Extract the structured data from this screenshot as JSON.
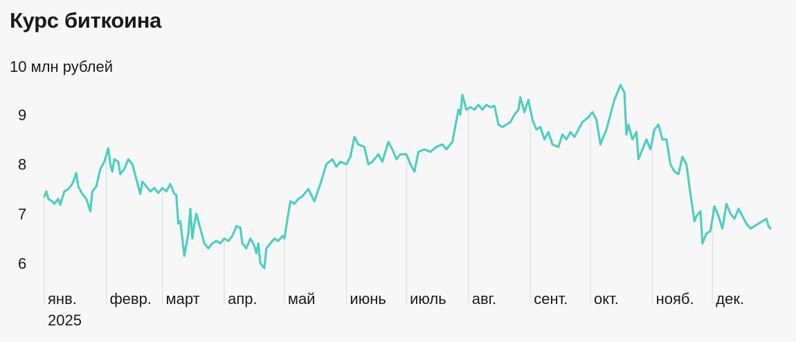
{
  "title": "Курс биткоина",
  "subtitle": "10 млн рублей",
  "colors": {
    "line": "#4fcfbf",
    "gridline": "#dadada",
    "background": "#f7f7f7"
  },
  "chart_data": {
    "type": "line",
    "title": "Курс биткоина",
    "ylabel": "10 млн рублей",
    "ylim": [
      5.8,
      9.7
    ],
    "grid": false,
    "y_ticks": [
      "6",
      "7",
      "8",
      "9"
    ],
    "x_ticks": [
      "янв.",
      "февр.",
      "март",
      "апр.",
      "май",
      "июнь",
      "июль",
      "авг.",
      "сент.",
      "окт.",
      "нояб.",
      "дек."
    ],
    "x_year_label": "2025",
    "series": [
      {
        "points": [
          [
            "2025-01-01",
            7.35
          ],
          [
            "2025-01-02",
            7.45
          ],
          [
            "2025-01-03",
            7.3
          ],
          [
            "2025-01-05",
            7.25
          ],
          [
            "2025-01-06",
            7.2
          ],
          [
            "2025-01-08",
            7.3
          ],
          [
            "2025-01-09",
            7.18
          ],
          [
            "2025-01-11",
            7.45
          ],
          [
            "2025-01-13",
            7.5
          ],
          [
            "2025-01-15",
            7.6
          ],
          [
            "2025-01-17",
            7.82
          ],
          [
            "2025-01-18",
            7.55
          ],
          [
            "2025-01-20",
            7.4
          ],
          [
            "2025-01-22",
            7.3
          ],
          [
            "2025-01-24",
            7.05
          ],
          [
            "2025-01-25",
            7.45
          ],
          [
            "2025-01-27",
            7.55
          ],
          [
            "2025-01-29",
            7.9
          ],
          [
            "2025-01-31",
            8.05
          ],
          [
            "2025-02-02",
            8.32
          ],
          [
            "2025-02-03",
            8.0
          ],
          [
            "2025-02-04",
            7.85
          ],
          [
            "2025-02-05",
            8.1
          ],
          [
            "2025-02-07",
            8.05
          ],
          [
            "2025-02-08",
            7.8
          ],
          [
            "2025-02-10",
            7.9
          ],
          [
            "2025-02-12",
            8.1
          ],
          [
            "2025-02-14",
            8.0
          ],
          [
            "2025-02-16",
            7.7
          ],
          [
            "2025-02-18",
            7.4
          ],
          [
            "2025-02-19",
            7.65
          ],
          [
            "2025-02-21",
            7.55
          ],
          [
            "2025-02-23",
            7.45
          ],
          [
            "2025-02-25",
            7.52
          ],
          [
            "2025-02-27",
            7.42
          ],
          [
            "2025-03-01",
            7.52
          ],
          [
            "2025-03-03",
            7.45
          ],
          [
            "2025-03-05",
            7.6
          ],
          [
            "2025-03-07",
            7.4
          ],
          [
            "2025-03-08",
            7.38
          ],
          [
            "2025-03-09",
            6.8
          ],
          [
            "2025-03-10",
            6.85
          ],
          [
            "2025-03-11",
            6.5
          ],
          [
            "2025-03-12",
            6.15
          ],
          [
            "2025-03-14",
            6.6
          ],
          [
            "2025-03-15",
            7.1
          ],
          [
            "2025-03-16",
            6.5
          ],
          [
            "2025-03-17",
            6.8
          ],
          [
            "2025-03-18",
            7.0
          ],
          [
            "2025-03-20",
            6.7
          ],
          [
            "2025-03-22",
            6.4
          ],
          [
            "2025-03-24",
            6.3
          ],
          [
            "2025-03-26",
            6.4
          ],
          [
            "2025-03-28",
            6.45
          ],
          [
            "2025-03-30",
            6.4
          ],
          [
            "2025-04-01",
            6.5
          ],
          [
            "2025-04-03",
            6.45
          ],
          [
            "2025-04-05",
            6.55
          ],
          [
            "2025-04-07",
            6.75
          ],
          [
            "2025-04-09",
            6.72
          ],
          [
            "2025-04-10",
            6.4
          ],
          [
            "2025-04-12",
            6.3
          ],
          [
            "2025-04-14",
            6.5
          ],
          [
            "2025-04-16",
            6.35
          ],
          [
            "2025-04-17",
            6.2
          ],
          [
            "2025-04-18",
            6.4
          ],
          [
            "2025-04-19",
            6.0
          ],
          [
            "2025-04-21",
            5.9
          ],
          [
            "2025-04-22",
            6.3
          ],
          [
            "2025-04-24",
            6.4
          ],
          [
            "2025-04-26",
            6.5
          ],
          [
            "2025-04-28",
            6.45
          ],
          [
            "2025-04-30",
            6.55
          ],
          [
            "2025-05-01",
            6.5
          ],
          [
            "2025-05-02",
            6.75
          ],
          [
            "2025-05-04",
            7.25
          ],
          [
            "2025-05-06",
            7.2
          ],
          [
            "2025-05-08",
            7.3
          ],
          [
            "2025-05-10",
            7.35
          ],
          [
            "2025-05-13",
            7.5
          ],
          [
            "2025-05-16",
            7.25
          ],
          [
            "2025-05-19",
            7.6
          ],
          [
            "2025-05-22",
            8.0
          ],
          [
            "2025-05-25",
            8.1
          ],
          [
            "2025-05-27",
            7.95
          ],
          [
            "2025-05-29",
            8.05
          ],
          [
            "2025-06-01",
            8.0
          ],
          [
            "2025-06-03",
            8.15
          ],
          [
            "2025-06-05",
            8.55
          ],
          [
            "2025-06-07",
            8.4
          ],
          [
            "2025-06-10",
            8.35
          ],
          [
            "2025-06-12",
            8.0
          ],
          [
            "2025-06-14",
            8.05
          ],
          [
            "2025-06-17",
            8.2
          ],
          [
            "2025-06-19",
            8.05
          ],
          [
            "2025-06-22",
            8.45
          ],
          [
            "2025-06-24",
            8.3
          ],
          [
            "2025-06-26",
            8.1
          ],
          [
            "2025-06-28",
            8.2
          ],
          [
            "2025-07-01",
            8.2
          ],
          [
            "2025-07-03",
            8.0
          ],
          [
            "2025-07-05",
            7.85
          ],
          [
            "2025-07-07",
            8.25
          ],
          [
            "2025-07-10",
            8.3
          ],
          [
            "2025-07-13",
            8.25
          ],
          [
            "2025-07-16",
            8.35
          ],
          [
            "2025-07-19",
            8.4
          ],
          [
            "2025-07-21",
            8.3
          ],
          [
            "2025-07-24",
            8.45
          ],
          [
            "2025-07-27",
            9.1
          ],
          [
            "2025-07-28",
            9.0
          ],
          [
            "2025-07-29",
            9.4
          ],
          [
            "2025-07-31",
            9.1
          ],
          [
            "2025-08-02",
            9.15
          ],
          [
            "2025-08-04",
            9.1
          ],
          [
            "2025-08-06",
            9.2
          ],
          [
            "2025-08-08",
            9.1
          ],
          [
            "2025-08-10",
            9.2
          ],
          [
            "2025-08-12",
            9.15
          ],
          [
            "2025-08-14",
            9.18
          ],
          [
            "2025-08-16",
            8.8
          ],
          [
            "2025-08-18",
            8.75
          ],
          [
            "2025-08-20",
            8.8
          ],
          [
            "2025-08-22",
            8.85
          ],
          [
            "2025-08-24",
            9.0
          ],
          [
            "2025-08-26",
            9.1
          ],
          [
            "2025-08-27",
            9.35
          ],
          [
            "2025-08-29",
            9.05
          ],
          [
            "2025-08-31",
            9.3
          ],
          [
            "2025-09-02",
            8.9
          ],
          [
            "2025-09-04",
            8.7
          ],
          [
            "2025-09-06",
            8.75
          ],
          [
            "2025-09-08",
            8.5
          ],
          [
            "2025-09-10",
            8.65
          ],
          [
            "2025-09-12",
            8.4
          ],
          [
            "2025-09-15",
            8.35
          ],
          [
            "2025-09-17",
            8.6
          ],
          [
            "2025-09-19",
            8.5
          ],
          [
            "2025-09-21",
            8.65
          ],
          [
            "2025-09-23",
            8.55
          ],
          [
            "2025-09-25",
            8.7
          ],
          [
            "2025-09-27",
            8.85
          ],
          [
            "2025-09-30",
            8.95
          ],
          [
            "2025-10-02",
            9.05
          ],
          [
            "2025-10-04",
            8.9
          ],
          [
            "2025-10-06",
            8.4
          ],
          [
            "2025-10-07",
            8.5
          ],
          [
            "2025-10-09",
            8.7
          ],
          [
            "2025-10-11",
            9.0
          ],
          [
            "2025-10-13",
            9.3
          ],
          [
            "2025-10-16",
            9.6
          ],
          [
            "2025-10-18",
            9.45
          ],
          [
            "2025-10-19",
            8.6
          ],
          [
            "2025-10-20",
            8.8
          ],
          [
            "2025-10-22",
            8.5
          ],
          [
            "2025-10-24",
            8.65
          ],
          [
            "2025-10-25",
            8.1
          ],
          [
            "2025-10-27",
            8.3
          ],
          [
            "2025-10-29",
            8.5
          ],
          [
            "2025-10-31",
            8.3
          ],
          [
            "2025-11-02",
            8.7
          ],
          [
            "2025-11-04",
            8.8
          ],
          [
            "2025-11-06",
            8.5
          ],
          [
            "2025-11-08",
            8.5
          ],
          [
            "2025-11-10",
            8.0
          ],
          [
            "2025-11-12",
            7.85
          ],
          [
            "2025-11-14",
            7.8
          ],
          [
            "2025-11-16",
            8.15
          ],
          [
            "2025-11-18",
            8.0
          ],
          [
            "2025-11-20",
            7.4
          ],
          [
            "2025-11-22",
            6.85
          ],
          [
            "2025-11-23",
            6.95
          ],
          [
            "2025-11-25",
            7.05
          ],
          [
            "2025-11-26",
            6.4
          ],
          [
            "2025-11-28",
            6.6
          ],
          [
            "2025-11-30",
            6.65
          ],
          [
            "2025-12-02",
            7.15
          ],
          [
            "2025-12-04",
            6.95
          ],
          [
            "2025-12-06",
            6.7
          ],
          [
            "2025-12-08",
            7.2
          ],
          [
            "2025-12-10",
            7.0
          ],
          [
            "2025-12-12",
            6.9
          ],
          [
            "2025-12-14",
            7.1
          ],
          [
            "2025-12-16",
            6.95
          ],
          [
            "2025-12-18",
            6.8
          ],
          [
            "2025-12-20",
            6.7
          ],
          [
            "2025-12-22",
            6.75
          ],
          [
            "2025-12-24",
            6.8
          ],
          [
            "2025-12-26",
            6.85
          ],
          [
            "2025-12-28",
            6.9
          ],
          [
            "2025-12-29",
            6.75
          ],
          [
            "2025-12-30",
            6.7
          ]
        ]
      }
    ]
  }
}
